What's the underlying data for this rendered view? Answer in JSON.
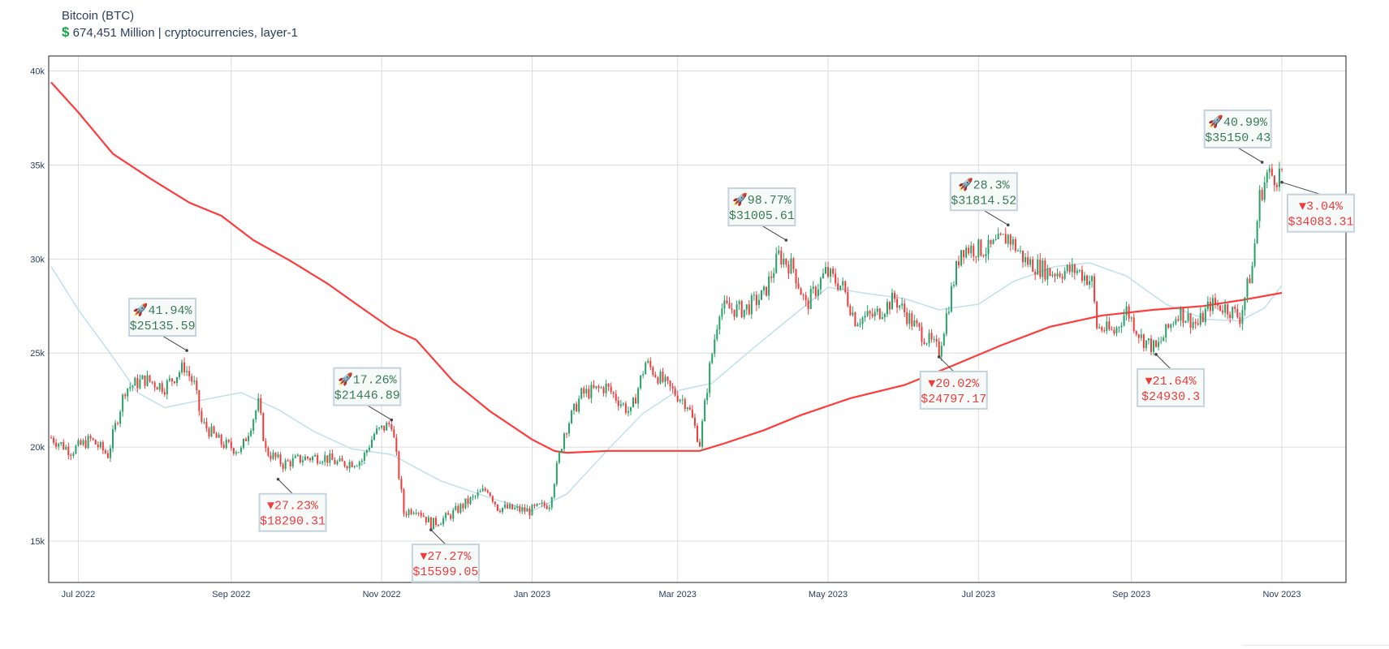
{
  "header": {
    "title": "Bitcoin (BTC)",
    "subtitle_icon": "dollar-icon",
    "subtitle": "674,451 Million | cryptocurrencies, layer-1"
  },
  "colors": {
    "up": "#26a269",
    "down": "#ef3b3b",
    "ma_slow": "#ff3b3b",
    "ma_fast": "#bfe0ef",
    "up_text": "#3a7a56",
    "down_text": "#ef3b3b"
  },
  "chart_data": {
    "type": "candlestick",
    "x_ticks": [
      "2022-07-01",
      "2022-09-01",
      "2022-11-01",
      "2023-01-01",
      "2023-03-01",
      "2023-05-01",
      "2023-07-01",
      "2023-09-01",
      "2023-11-01"
    ],
    "x_tick_labels": [
      "Jul 2022",
      "Sep 2022",
      "Nov 2022",
      "Jan 2023",
      "Mar 2023",
      "May 2023",
      "Jul 2023",
      "Sep 2023",
      "Nov 2023"
    ],
    "y_ticks": [
      15000,
      20000,
      25000,
      30000,
      35000,
      40000
    ],
    "y_tick_labels": [
      "15k",
      "20k",
      "25k",
      "30k",
      "35k",
      "40k"
    ],
    "xlim": [
      "2022-06-19",
      "2023-11-27"
    ],
    "ylim": [
      12800,
      40800
    ],
    "grid": true,
    "close_anchors": [
      [
        "2022-06-20",
        20500
      ],
      [
        "2022-06-28",
        19800
      ],
      [
        "2022-07-06",
        20400
      ],
      [
        "2022-07-13",
        19600
      ],
      [
        "2022-07-20",
        23100
      ],
      [
        "2022-07-28",
        23600
      ],
      [
        "2022-08-05",
        23200
      ],
      [
        "2022-08-13",
        24300
      ],
      [
        "2022-08-17",
        23300
      ],
      [
        "2022-08-20",
        21300
      ],
      [
        "2022-08-28",
        20200
      ],
      [
        "2022-09-05",
        19800
      ],
      [
        "2022-09-12",
        22300
      ],
      [
        "2022-09-15",
        19800
      ],
      [
        "2022-09-22",
        19100
      ],
      [
        "2022-09-30",
        19400
      ],
      [
        "2022-10-08",
        19500
      ],
      [
        "2022-10-15",
        19100
      ],
      [
        "2022-10-24",
        19300
      ],
      [
        "2022-10-29",
        20700
      ],
      [
        "2022-11-05",
        21300
      ],
      [
        "2022-11-08",
        18500
      ],
      [
        "2022-11-10",
        16500
      ],
      [
        "2022-11-15",
        16800
      ],
      [
        "2022-11-21",
        15900
      ],
      [
        "2022-11-28",
        16300
      ],
      [
        "2022-12-05",
        17000
      ],
      [
        "2022-12-14",
        17800
      ],
      [
        "2022-12-18",
        16800
      ],
      [
        "2022-12-31",
        16600
      ],
      [
        "2023-01-08",
        17000
      ],
      [
        "2023-01-14",
        20800
      ],
      [
        "2023-01-21",
        22800
      ],
      [
        "2023-01-31",
        23200
      ],
      [
        "2023-02-10",
        21800
      ],
      [
        "2023-02-16",
        24500
      ],
      [
        "2023-02-25",
        23200
      ],
      [
        "2023-03-05",
        22300
      ],
      [
        "2023-03-10",
        20200
      ],
      [
        "2023-03-14",
        24200
      ],
      [
        "2023-03-18",
        27400
      ],
      [
        "2023-03-28",
        27300
      ],
      [
        "2023-04-05",
        28100
      ],
      [
        "2023-04-11",
        30200
      ],
      [
        "2023-04-17",
        29500
      ],
      [
        "2023-04-22",
        27500
      ],
      [
        "2023-04-30",
        29300
      ],
      [
        "2023-05-07",
        28500
      ],
      [
        "2023-05-12",
        26800
      ],
      [
        "2023-05-20",
        27000
      ],
      [
        "2023-05-28",
        27900
      ],
      [
        "2023-06-06",
        26300
      ],
      [
        "2023-06-15",
        25100
      ],
      [
        "2023-06-20",
        28300
      ],
      [
        "2023-06-24",
        30600
      ],
      [
        "2023-07-05",
        30500
      ],
      [
        "2023-07-13",
        31200
      ],
      [
        "2023-07-20",
        29900
      ],
      [
        "2023-07-30",
        29300
      ],
      [
        "2023-08-10",
        29400
      ],
      [
        "2023-08-16",
        28800
      ],
      [
        "2023-08-18",
        26400
      ],
      [
        "2023-08-25",
        26100
      ],
      [
        "2023-08-30",
        27300
      ],
      [
        "2023-09-05",
        25800
      ],
      [
        "2023-09-11",
        25200
      ],
      [
        "2023-09-20",
        27200
      ],
      [
        "2023-09-28",
        26500
      ],
      [
        "2023-10-03",
        27600
      ],
      [
        "2023-10-10",
        27400
      ],
      [
        "2023-10-15",
        26900
      ],
      [
        "2023-10-20",
        29600
      ],
      [
        "2023-10-23",
        33300
      ],
      [
        "2023-10-26",
        34500
      ],
      [
        "2023-10-30",
        34400
      ],
      [
        "2023-11-01",
        34700
      ]
    ],
    "annotations": [
      {
        "x": "2022-08-14",
        "y": 25135.59,
        "pct": "🚀41.94%",
        "price": "$25135.59",
        "kind": "up"
      },
      {
        "x": "2022-09-20",
        "y": 18290.31,
        "pct": "▼27.23%",
        "price": "$18290.31",
        "kind": "down"
      },
      {
        "x": "2022-11-05",
        "y": 21446.89,
        "pct": "🚀17.26%",
        "price": "$21446.89",
        "kind": "up"
      },
      {
        "x": "2022-11-21",
        "y": 15599.05,
        "pct": "▼27.27%",
        "price": "$15599.05",
        "kind": "down"
      },
      {
        "x": "2023-04-14",
        "y": 31005.61,
        "pct": "🚀98.77%",
        "price": "$31005.61",
        "kind": "up"
      },
      {
        "x": "2023-06-15",
        "y": 24797.17,
        "pct": "▼20.02%",
        "price": "$24797.17",
        "kind": "down"
      },
      {
        "x": "2023-07-13",
        "y": 31814.52,
        "pct": "🚀28.3%",
        "price": "$31814.52",
        "kind": "up"
      },
      {
        "x": "2023-09-11",
        "y": 24930.3,
        "pct": "▼21.64%",
        "price": "$24930.3",
        "kind": "down"
      },
      {
        "x": "2023-10-24",
        "y": 35150.43,
        "pct": "🚀40.99%",
        "price": "$35150.43",
        "kind": "up"
      },
      {
        "x": "2023-11-01",
        "y": 34083.31,
        "pct": "▼3.04%",
        "price": "$34083.31",
        "kind": "down"
      }
    ],
    "moving_average_slow": [
      [
        "2022-06-20",
        39400
      ],
      [
        "2022-07-01",
        37800
      ],
      [
        "2022-07-15",
        35600
      ],
      [
        "2022-07-30",
        34300
      ],
      [
        "2022-08-15",
        33000
      ],
      [
        "2022-08-28",
        32300
      ],
      [
        "2022-09-10",
        31000
      ],
      [
        "2022-09-25",
        29900
      ],
      [
        "2022-10-10",
        28700
      ],
      [
        "2022-10-25",
        27300
      ],
      [
        "2022-11-05",
        26300
      ],
      [
        "2022-11-15",
        25700
      ],
      [
        "2022-11-30",
        23500
      ],
      [
        "2022-12-15",
        21900
      ],
      [
        "2023-01-01",
        20400
      ],
      [
        "2023-01-10",
        19800
      ],
      [
        "2023-01-15",
        19700
      ],
      [
        "2023-02-01",
        19800
      ],
      [
        "2023-02-15",
        19800
      ],
      [
        "2023-03-01",
        19800
      ],
      [
        "2023-03-10",
        19800
      ],
      [
        "2023-03-20",
        20200
      ],
      [
        "2023-04-05",
        20900
      ],
      [
        "2023-04-20",
        21700
      ],
      [
        "2023-05-10",
        22600
      ],
      [
        "2023-06-01",
        23300
      ],
      [
        "2023-06-20",
        24300
      ],
      [
        "2023-07-10",
        25400
      ],
      [
        "2023-07-30",
        26400
      ],
      [
        "2023-08-20",
        27000
      ],
      [
        "2023-09-10",
        27300
      ],
      [
        "2023-09-30",
        27500
      ],
      [
        "2023-10-15",
        27800
      ],
      [
        "2023-11-01",
        28200
      ]
    ],
    "moving_average_fast": [
      [
        "2022-06-20",
        29600
      ],
      [
        "2022-07-01",
        27300
      ],
      [
        "2022-07-15",
        24800
      ],
      [
        "2022-07-25",
        22900
      ],
      [
        "2022-08-05",
        22100
      ],
      [
        "2022-08-20",
        22500
      ],
      [
        "2022-09-05",
        22900
      ],
      [
        "2022-09-20",
        22000
      ],
      [
        "2022-10-05",
        20800
      ],
      [
        "2022-10-20",
        19900
      ],
      [
        "2022-11-05",
        19600
      ],
      [
        "2022-11-25",
        18200
      ],
      [
        "2022-12-15",
        17300
      ],
      [
        "2023-01-01",
        16600
      ],
      [
        "2023-01-15",
        17500
      ],
      [
        "2023-02-01",
        19900
      ],
      [
        "2023-02-15",
        21800
      ],
      [
        "2023-03-01",
        23000
      ],
      [
        "2023-03-15",
        23400
      ],
      [
        "2023-04-01",
        25300
      ],
      [
        "2023-04-15",
        26800
      ],
      [
        "2023-05-01",
        28500
      ],
      [
        "2023-05-15",
        28200
      ],
      [
        "2023-06-01",
        27900
      ],
      [
        "2023-06-15",
        27300
      ],
      [
        "2023-07-01",
        27600
      ],
      [
        "2023-07-15",
        28800
      ],
      [
        "2023-08-01",
        29600
      ],
      [
        "2023-08-15",
        29800
      ],
      [
        "2023-08-30",
        29100
      ],
      [
        "2023-09-15",
        27600
      ],
      [
        "2023-10-01",
        26800
      ],
      [
        "2023-10-15",
        26700
      ],
      [
        "2023-10-25",
        27400
      ],
      [
        "2023-11-01",
        28600
      ]
    ]
  }
}
